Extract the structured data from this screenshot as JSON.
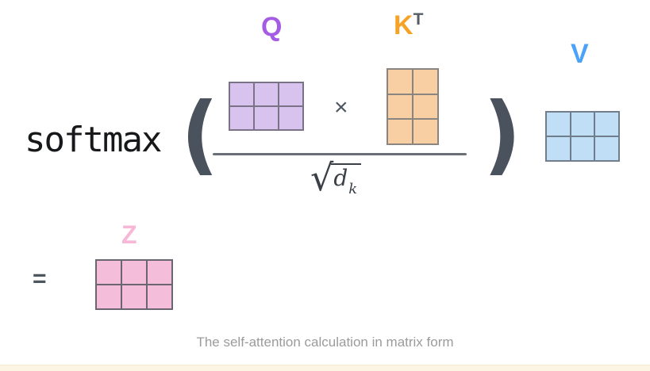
{
  "equation": {
    "function": "softmax",
    "open_paren": "(",
    "close_paren": ")",
    "times": "×",
    "equals": "=",
    "sqrt": {
      "radical": "√",
      "base": "d",
      "subscript": "k"
    }
  },
  "matrices": {
    "Q": {
      "label": "Q",
      "rows": 2,
      "cols": 3,
      "fill": "#d7c3ee",
      "line": "#7a7287",
      "label_color": "#a55ce5"
    },
    "KT": {
      "label": "K",
      "superscript": "T",
      "rows": 3,
      "cols": 2,
      "fill": "#f8cfa2",
      "line": "#8a8581",
      "label_color": "#f6a227",
      "superscript_color": "#565d66"
    },
    "V": {
      "label": "V",
      "rows": 2,
      "cols": 3,
      "fill": "#c1def7",
      "line": "#6f7d8c",
      "label_color": "#4aa3f8"
    },
    "Z": {
      "label": "Z",
      "rows": 2,
      "cols": 3,
      "fill": "#f4bdda",
      "line": "#6a6570",
      "label_color": "#f7b8d8"
    }
  },
  "caption": "The self-attention calculation in matrix form",
  "colors": {
    "softmax_text": "#17181a",
    "paren": "#4a525d",
    "operator": "#4e565f",
    "fraction_bar": "#6b7077",
    "sqrt_text": "#3a4046",
    "caption_text": "#9b9b9b",
    "bottom_bar": "#fdf5e3"
  }
}
